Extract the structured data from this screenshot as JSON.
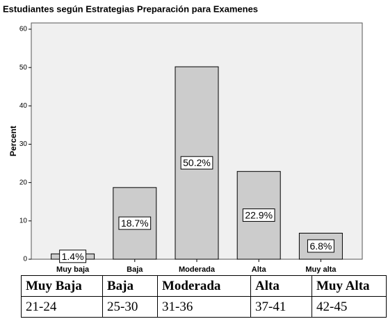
{
  "chart_data": {
    "type": "bar",
    "title": "Estudiantes según Estrategias Preparación para Examenes",
    "categories": [
      "Muy baja",
      "Baja",
      "Moderada",
      "Alta",
      "Muy alta"
    ],
    "values": [
      1.4,
      18.7,
      50.2,
      22.9,
      6.8
    ],
    "value_labels": [
      "1.4%",
      "18.7%",
      "50.2%",
      "22.9%",
      "6.8%"
    ],
    "color": "#cccccc",
    "ylabel": "Percent",
    "ylim": [
      0,
      60
    ],
    "yticks": [
      0,
      10,
      20,
      30,
      40,
      50,
      60
    ]
  },
  "table": {
    "header": [
      "Muy Baja",
      "Baja",
      "Moderada",
      "Alta",
      "Muy Alta"
    ],
    "rows": [
      [
        "21-24",
        "25-30",
        "31-36",
        "37-41",
        "42-45"
      ]
    ]
  }
}
